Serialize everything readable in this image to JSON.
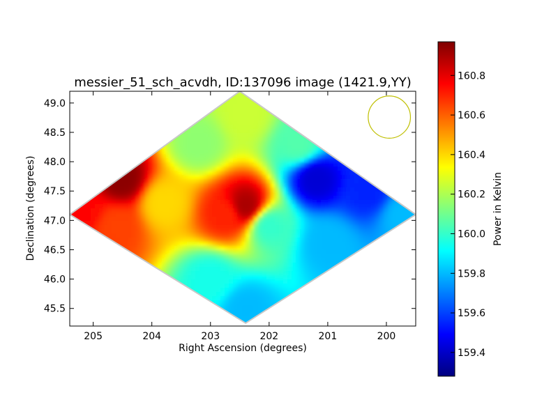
{
  "chart_data": {
    "type": "heatmap",
    "title": "messier_51_sch_acvdh, ID:137096 image (1421.9,YY)",
    "xlabel": "Right Ascension (degrees)",
    "ylabel": "Declination (degrees)",
    "colorbar_label": "Power in Kelvin",
    "xlim": [
      205.4,
      199.5
    ],
    "ylim": [
      45.2,
      49.2
    ],
    "x_ticks": [
      205,
      204,
      203,
      202,
      201,
      200
    ],
    "y_ticks": [
      45.5,
      46.0,
      46.5,
      47.0,
      47.5,
      48.0,
      48.5,
      49.0
    ],
    "y_tick_labels": [
      "45.5",
      "46.0",
      "46.5",
      "47.0",
      "47.5",
      "48.0",
      "48.5",
      "49.0"
    ],
    "color_range": [
      159.28,
      160.97
    ],
    "colorbar_ticks": [
      159.4,
      159.6,
      159.8,
      160.0,
      160.2,
      160.4,
      160.6,
      160.8
    ],
    "colorbar_tick_labels": [
      "159.4",
      "159.6",
      "159.8",
      "160.0",
      "160.2",
      "160.4",
      "160.6",
      "160.8"
    ],
    "colormap": "jet",
    "footprint": {
      "shape": "diamond",
      "vertices": [
        [
          205.4,
          47.1
        ],
        [
          202.5,
          49.2
        ],
        [
          199.5,
          47.1
        ],
        [
          202.4,
          45.25
        ]
      ]
    },
    "regions": [
      {
        "ra": 204.5,
        "dec": 47.7,
        "value": 160.95
      },
      {
        "ra": 205.2,
        "dec": 47.15,
        "value": 160.75
      },
      {
        "ra": 204.6,
        "dec": 46.9,
        "value": 160.65
      },
      {
        "ra": 203.8,
        "dec": 47.3,
        "value": 160.4
      },
      {
        "ra": 203.2,
        "dec": 48.3,
        "value": 160.15
      },
      {
        "ra": 202.4,
        "dec": 48.8,
        "value": 160.25
      },
      {
        "ra": 202.4,
        "dec": 47.25,
        "value": 160.9
      },
      {
        "ra": 202.75,
        "dec": 47.1,
        "value": 160.7
      },
      {
        "ra": 203.0,
        "dec": 46.0,
        "value": 159.95
      },
      {
        "ra": 202.4,
        "dec": 45.5,
        "value": 159.8
      },
      {
        "ra": 201.2,
        "dec": 47.7,
        "value": 159.42
      },
      {
        "ra": 200.3,
        "dec": 47.5,
        "value": 159.55
      },
      {
        "ra": 199.7,
        "dec": 47.1,
        "value": 159.8
      },
      {
        "ra": 201.0,
        "dec": 46.6,
        "value": 159.8
      },
      {
        "ra": 201.5,
        "dec": 48.3,
        "value": 160.05
      },
      {
        "ra": 202.0,
        "dec": 46.9,
        "value": 160.0
      }
    ],
    "beam": {
      "ra": 199.95,
      "dec": 48.76,
      "radius_deg": 0.36,
      "color": "#bfbf00"
    },
    "grid": false
  }
}
